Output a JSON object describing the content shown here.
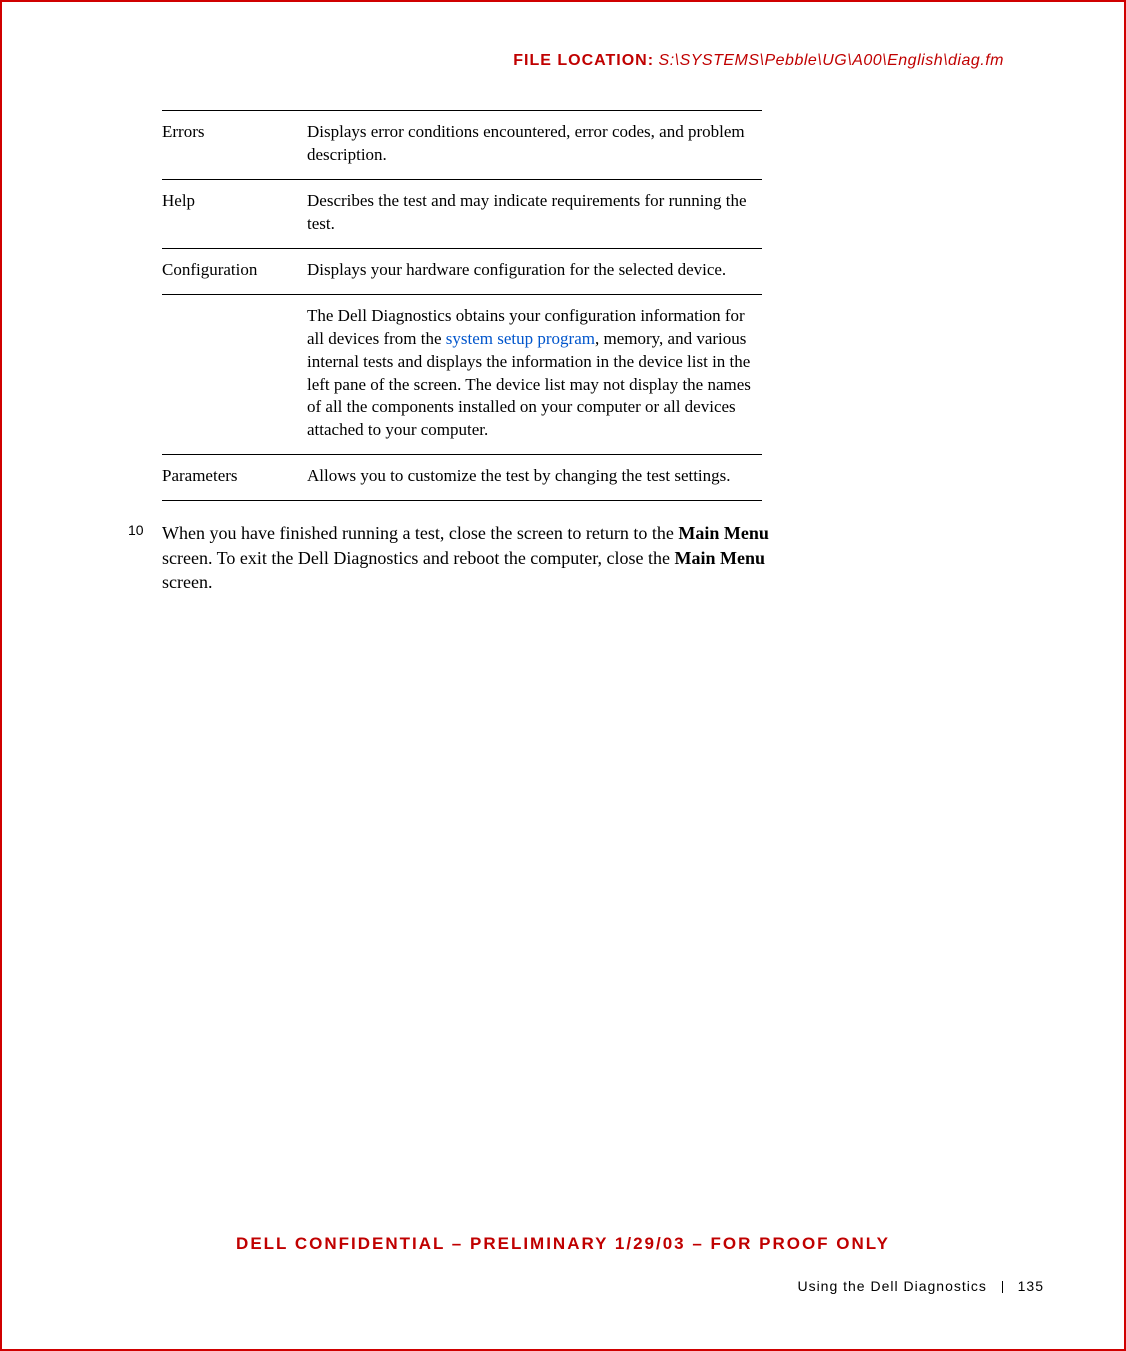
{
  "file_location": {
    "label": "FILE LOCATION:",
    "path": "S:\\SYSTEMS\\Pebble\\UG\\A00\\English\\diag.fm"
  },
  "table": {
    "rows": [
      {
        "term": "Errors",
        "desc_pre": "Displays error conditions encountered, error codes, and problem description.",
        "link": "",
        "desc_post": ""
      },
      {
        "term": "Help",
        "desc_pre": "Describes the test and may indicate requirements for running the test.",
        "link": "",
        "desc_post": ""
      },
      {
        "term": "Configuration",
        "desc_pre": "Displays your hardware configuration for the selected device.",
        "link": "",
        "desc_post": ""
      },
      {
        "term": "",
        "desc_pre": "The Dell Diagnostics obtains your configuration information for all devices from the ",
        "link": "system setup program",
        "desc_post": ", memory, and various internal tests and displays the information in the device list in the left pane of the screen. The device list may not display the names of all the components installed on your computer or all devices attached to your computer."
      },
      {
        "term": "Parameters",
        "desc_pre": "Allows you to customize the test by changing the test settings.",
        "link": "",
        "desc_post": ""
      }
    ]
  },
  "step": {
    "num": "10",
    "text_parts": {
      "p1": "When you have finished running a test, close the screen to return to the ",
      "b1": "Main Menu",
      "p2": " screen. To exit the Dell Diagnostics and reboot the computer, close the ",
      "b2": "Main Menu",
      "p3": " screen."
    }
  },
  "confidential": "DELL CONFIDENTIAL – PRELIMINARY 1/29/03 – FOR PROOF ONLY",
  "footer": {
    "section": "Using the Dell Diagnostics",
    "page": "135"
  },
  "colors": {
    "accent": "#c00000",
    "border": "#d00000",
    "link": "#0055cc"
  }
}
